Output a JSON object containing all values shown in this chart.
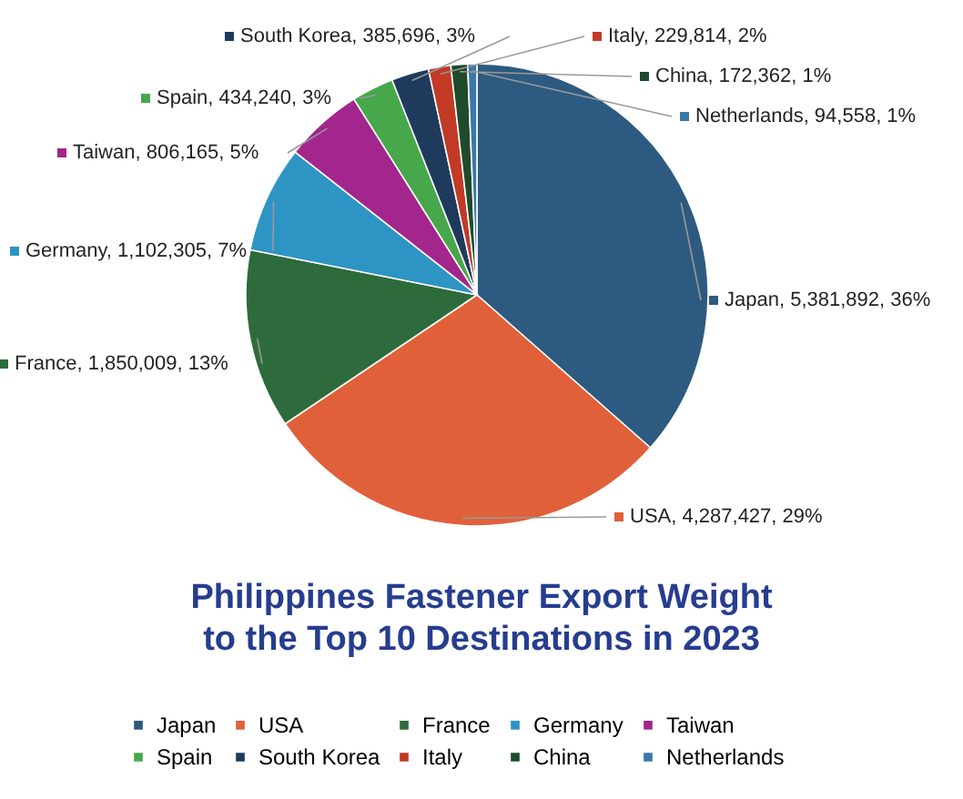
{
  "chart_data": {
    "type": "pie",
    "title": "Philippines Fastener Export Weight\nto the Top 10 Destinations in 2023",
    "categories": [
      "Japan",
      "USA",
      "France",
      "Germany",
      "Taiwan",
      "Spain",
      "South Korea",
      "Italy",
      "China",
      "Netherlands"
    ],
    "values": [
      5381892,
      4287427,
      1850009,
      1102305,
      806165,
      434240,
      385696,
      229814,
      172362,
      94558
    ],
    "value_labels": [
      ", 5,381,892, 36%",
      ", 4,287,427, 29%",
      ", 1,850,009, 13%",
      ", 1,102,305, 7%",
      ", 806,165, 5%",
      ", 434,240, 3%",
      ", 385,696, 3%",
      ", 229,814, 2%",
      ", 172,362, 1%",
      ", 94,558, 1%"
    ],
    "colors": [
      "#2d5a80",
      "#e0603a",
      "#2e6b3c",
      "#2e94c4",
      "#a3268c",
      "#46a84a",
      "#1f3a5c",
      "#c23a26",
      "#1f4a2c",
      "#3b78a8"
    ],
    "legend": "bottom"
  }
}
